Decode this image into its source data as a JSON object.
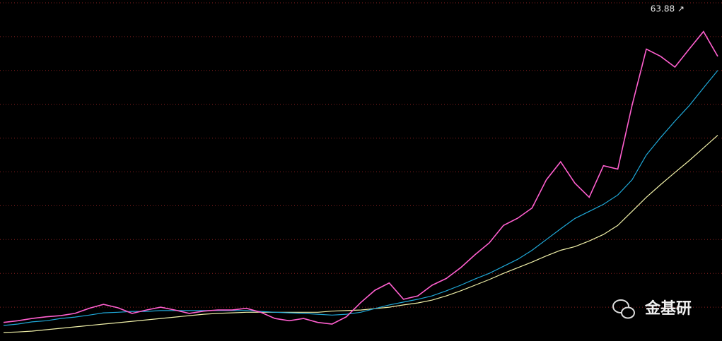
{
  "chart_data": {
    "type": "line",
    "categories": [
      null,
      null,
      null,
      null,
      null,
      null,
      null,
      null,
      null,
      null,
      null,
      null,
      null,
      null,
      null,
      null,
      null,
      null,
      null,
      null,
      null,
      null,
      null,
      null,
      null,
      null,
      null,
      null,
      null,
      null,
      null,
      null,
      null,
      null,
      null,
      null,
      null,
      null,
      null,
      null,
      null,
      null,
      null,
      null,
      null,
      null,
      null,
      null,
      null,
      null,
      null
    ],
    "series": [
      {
        "color": "#ff5fcf",
        "values": [
          8.3,
          8.6,
          9.0,
          9.3,
          9.5,
          9.9,
          10.8,
          11.5,
          10.9,
          9.9,
          10.5,
          11.0,
          10.5,
          9.9,
          10.3,
          10.5,
          10.5,
          10.8,
          10.1,
          9.0,
          8.6,
          9.0,
          8.3,
          8.0,
          9.3,
          11.8,
          14.0,
          15.3,
          12.4,
          13.0,
          14.9,
          16.1,
          18.0,
          20.3,
          22.4,
          25.5,
          26.8,
          28.6,
          33.6,
          36.8,
          33.0,
          30.5,
          36.1,
          35.5,
          46.8,
          56.8,
          55.5,
          53.6,
          56.8,
          59.9,
          55.5
        ]
      },
      {
        "color": "#1fa8d8",
        "values": [
          7.75,
          8.0,
          8.4,
          8.6,
          9.0,
          9.25,
          9.6,
          10.0,
          10.1,
          10.25,
          10.25,
          10.4,
          10.4,
          10.4,
          10.4,
          10.4,
          10.4,
          10.4,
          10.25,
          10.1,
          10.0,
          9.9,
          9.75,
          9.6,
          9.75,
          10.1,
          10.75,
          11.4,
          11.9,
          12.4,
          13.0,
          13.9,
          14.9,
          16.0,
          17.0,
          18.25,
          19.5,
          21.1,
          23.0,
          24.9,
          26.75,
          28.0,
          29.25,
          30.9,
          33.6,
          38.0,
          41.1,
          44.0,
          46.75,
          49.9,
          53.0
        ]
      },
      {
        "color": "#f0f0a8",
        "values": [
          6.5,
          6.6,
          6.75,
          7.0,
          7.25,
          7.5,
          7.75,
          8.0,
          8.25,
          8.5,
          8.75,
          9.0,
          9.25,
          9.5,
          9.75,
          9.9,
          10.0,
          10.1,
          10.1,
          10.1,
          10.1,
          10.1,
          10.1,
          10.3,
          10.4,
          10.5,
          10.75,
          11.0,
          11.4,
          11.75,
          12.25,
          13.0,
          13.9,
          14.9,
          15.9,
          17.0,
          18.0,
          19.0,
          20.1,
          21.1,
          21.75,
          22.75,
          23.9,
          25.5,
          28.0,
          30.5,
          32.75,
          34.9,
          37.0,
          39.25,
          41.5
        ]
      }
    ],
    "ylim": [
      5,
      65.5
    ],
    "grid_lines": [
      11,
      17,
      23,
      29,
      35,
      41,
      47,
      53,
      59,
      65
    ],
    "grid": true,
    "max_label": {
      "value": 63.88,
      "label": "63.88 ↗"
    },
    "watermark": "金基研"
  }
}
